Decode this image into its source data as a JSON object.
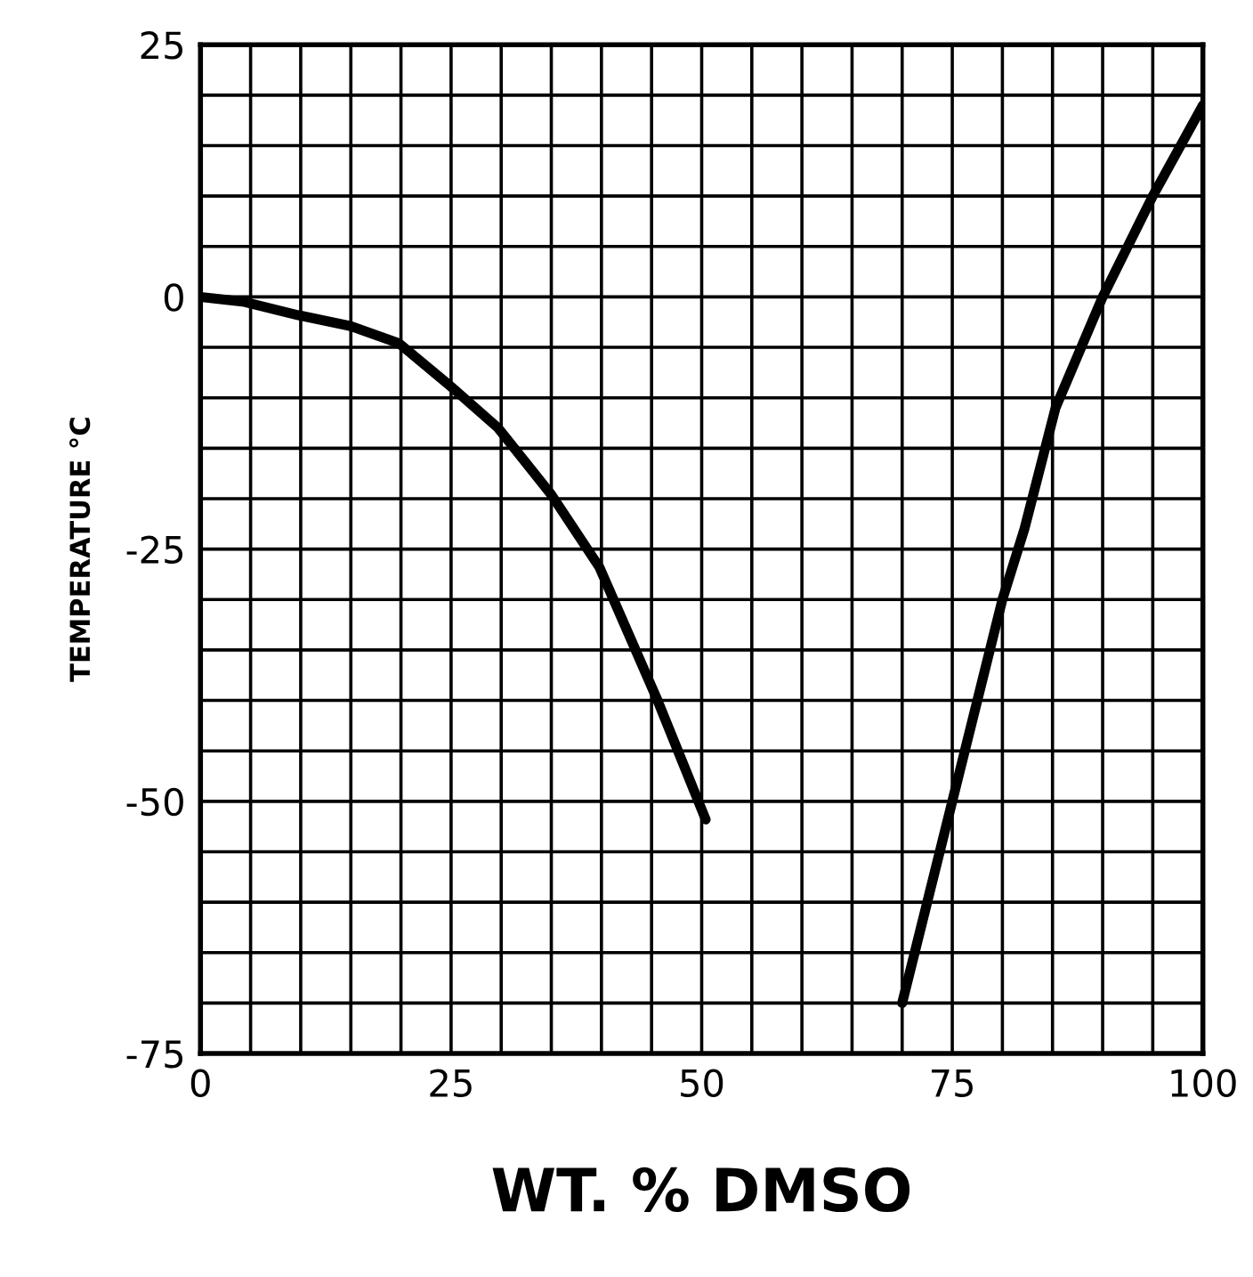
{
  "chart_data": {
    "type": "line",
    "xlabel": "WT. % DMSO",
    "ylabel": "TEMPERATURE °C",
    "series": [
      {
        "color": "#000000",
        "x": [
          0,
          4.4,
          9.7,
          15,
          19.8,
          25,
          29.7,
          35,
          39.8,
          45.6,
          50.4
        ],
        "values": [
          0,
          -0.5,
          -1.8,
          -2.9,
          -4.6,
          -8.9,
          -13,
          -19.6,
          -26.8,
          -40,
          -51.8
        ]
      },
      {
        "color": "#000000",
        "x": [
          70,
          75,
          80,
          82.2,
          85.3,
          90,
          95,
          100
        ],
        "values": [
          -70,
          -50,
          -30,
          -23,
          -11,
          0,
          10,
          19
        ]
      }
    ],
    "xlim": [
      0,
      100
    ],
    "ylim": [
      -75,
      25
    ],
    "xticks": [
      0,
      {
        "value": 5,
        "label": null
      },
      {
        "value": 10,
        "label": null
      },
      {
        "value": 15,
        "label": null
      },
      {
        "value": 20,
        "label": null
      },
      25,
      {
        "value": 30,
        "label": null
      },
      {
        "value": 35,
        "label": null
      },
      {
        "value": 40,
        "label": null
      },
      {
        "value": 45,
        "label": null
      },
      50,
      {
        "value": 55,
        "label": null
      },
      {
        "value": 60,
        "label": null
      },
      {
        "value": 65,
        "label": null
      },
      {
        "value": 70,
        "label": null
      },
      75,
      {
        "value": 80,
        "label": null
      },
      {
        "value": 85,
        "label": null
      },
      {
        "value": 90,
        "label": null
      },
      {
        "value": 95,
        "label": null
      },
      100
    ],
    "yticks": [
      -75,
      {
        "value": -70,
        "label": null
      },
      {
        "value": -65,
        "label": null
      },
      {
        "value": -60,
        "label": null
      },
      {
        "value": -55,
        "label": null
      },
      -50,
      {
        "value": -45,
        "label": null
      },
      {
        "value": -40,
        "label": null
      },
      {
        "value": -35,
        "label": null
      },
      {
        "value": -30,
        "label": null
      },
      -25,
      {
        "value": -20,
        "label": null
      },
      {
        "value": -15,
        "label": null
      },
      {
        "value": -10,
        "label": null
      },
      {
        "value": -5,
        "label": null
      },
      0,
      {
        "value": 5,
        "label": null
      },
      {
        "value": 10,
        "label": null
      },
      {
        "value": 15,
        "label": null
      },
      {
        "value": 20,
        "label": null
      },
      25
    ],
    "grid": true,
    "line_style": "solid",
    "marker": "none"
  }
}
